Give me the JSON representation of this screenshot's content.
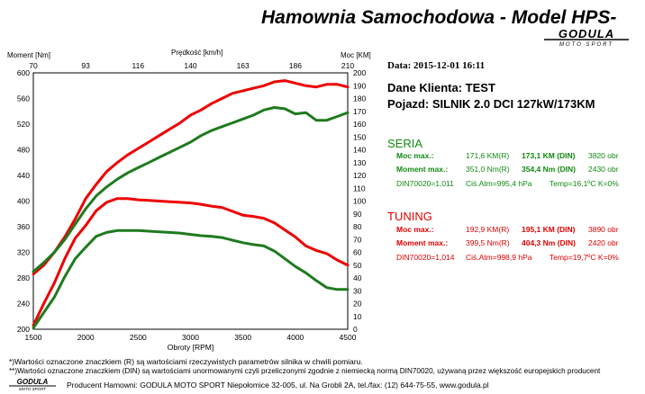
{
  "title": "Hamownia Samochodowa  -  Model HPS-",
  "logo": {
    "text": "GODULA",
    "subtext": "MOTO SPORT"
  },
  "header": {
    "moment_label": "Moment [Nm]",
    "speed_label": "Prędkość [km/h]",
    "power_label": "Moc [KM]",
    "speed_ticks": [
      "70",
      "93",
      "116",
      "140",
      "163",
      "186",
      "210"
    ]
  },
  "info": {
    "date": "Data: 2015-12-01  16:11",
    "client": "Dane Klienta: TEST",
    "vehicle": "Pojazd:  SILNIK  2.0 DCI 127kW/173KM"
  },
  "seria": {
    "heading": "SERIA",
    "power_label": "Moc max.:",
    "power_r": "171,6 KM(R)",
    "power_din": "173,1 KM (DIN)",
    "power_rpm": "3820 obr",
    "torque_label": "Moment max.:",
    "torque_r": "351,0 Nm(R)",
    "torque_din": "354,4 Nm (DIN)",
    "torque_rpm": "2430 obr",
    "din_code": "DIN70020=1,011",
    "pressure": "Ciś.Atm=995,4 hPa",
    "temp": "Temp=16,1ºC  K=0%"
  },
  "tuning": {
    "heading": "TUNING",
    "power_label": "Moc max.:",
    "power_r": "192,9 KM(R)",
    "power_din": "195,1 KM (DIN)",
    "power_rpm": "3890 obr",
    "torque_label": "Moment max.:",
    "torque_r": "399,5 Nm(R)",
    "torque_din": "404,3 Nm (DIN)",
    "torque_rpm": "2420 obr",
    "din_code": "DIN70020=1,014",
    "pressure": "Ciś.Atm=998,9 hPa",
    "temp": "Temp=19,7ºC  K=0%"
  },
  "footer": {
    "note1": "*)Wartości oznaczone znaczkiem (R) są wartościami rzeczywistych parametrów silnika w chwili pomiaru.",
    "note2": "**)Wartości oznaczone znaczkiem (DIN) są wartościami unormowanymi czyli przeliczonymi zgodnie z niemiecką normą DIN70020, używaną przez większość europejskich producent",
    "producer": "Producent Hamowni: GODULA MOTO SPORT Niepołomice 32-005, ul. Na Grobli 2A, tel./fax: (12) 644-75-55, www.godula.pl"
  },
  "chart_data": {
    "type": "line",
    "xlabel": "Obroty [RPM]",
    "xlim": [
      1500,
      4500
    ],
    "x_ticks": [
      1500,
      2000,
      2500,
      3000,
      3500,
      4000,
      4500
    ],
    "y_left_label": "Moment [Nm]",
    "y_left_lim": [
      200,
      600
    ],
    "y_left_ticks": [
      200,
      240,
      280,
      320,
      360,
      400,
      440,
      480,
      520,
      560,
      600
    ],
    "y_right_label": "Moc [KM]",
    "y_right_lim": [
      0,
      200
    ],
    "y_right_ticks": [
      0,
      10,
      20,
      30,
      40,
      50,
      60,
      70,
      80,
      90,
      100,
      110,
      120,
      130,
      140,
      150,
      160,
      170,
      180,
      190,
      200
    ],
    "grid": true,
    "series": [
      {
        "name": "TUNING",
        "measure": "torque",
        "axis": "left",
        "color": "#ee0000",
        "x": [
          1500,
          1600,
          1700,
          1800,
          1900,
          2000,
          2100,
          2200,
          2300,
          2400,
          2500,
          2600,
          2700,
          2800,
          2900,
          3000,
          3100,
          3200,
          3300,
          3400,
          3500,
          3600,
          3700,
          3800,
          3900,
          4000,
          4100,
          4200,
          4300,
          4400,
          4500
        ],
        "values": [
          206,
          240,
          272,
          310,
          342,
          362,
          385,
          398,
          404,
          404,
          402,
          401,
          400,
          399,
          398,
          397,
          395,
          392,
          390,
          384,
          378,
          376,
          373,
          366,
          355,
          344,
          330,
          323,
          318,
          308,
          300
        ]
      },
      {
        "name": "SERIA",
        "measure": "torque",
        "axis": "left",
        "color": "#1f7a1f",
        "x": [
          1500,
          1600,
          1700,
          1800,
          1900,
          2000,
          2100,
          2200,
          2300,
          2400,
          2500,
          2600,
          2700,
          2800,
          2900,
          3000,
          3100,
          3200,
          3300,
          3400,
          3500,
          3600,
          3700,
          3800,
          3900,
          4000,
          4100,
          4200,
          4300,
          4400,
          4500
        ],
        "values": [
          202,
          226,
          250,
          282,
          310,
          328,
          345,
          351,
          354,
          354,
          354,
          353,
          352,
          351,
          350,
          348,
          346,
          345,
          343,
          339,
          335,
          332,
          330,
          322,
          310,
          298,
          288,
          276,
          265,
          262,
          262
        ]
      },
      {
        "name": "TUNING",
        "measure": "power",
        "axis": "right",
        "color": "#ee0000",
        "x": [
          1500,
          1600,
          1700,
          1800,
          1900,
          2000,
          2100,
          2200,
          2300,
          2400,
          2500,
          2600,
          2700,
          2800,
          2900,
          3000,
          3100,
          3200,
          3300,
          3400,
          3500,
          3600,
          3700,
          3800,
          3900,
          4000,
          4100,
          4200,
          4300,
          4400,
          4500
        ],
        "values": [
          43,
          50,
          60,
          72,
          86,
          102,
          113,
          123,
          130,
          136,
          141,
          146,
          151,
          156,
          161,
          167,
          171,
          176,
          180,
          184,
          186,
          188,
          190,
          193,
          194,
          192,
          190,
          189,
          191,
          191,
          189
        ]
      },
      {
        "name": "SERIA",
        "measure": "power",
        "axis": "right",
        "color": "#1f7a1f",
        "x": [
          1500,
          1600,
          1700,
          1800,
          1900,
          2000,
          2100,
          2200,
          2300,
          2400,
          2500,
          2600,
          2700,
          2800,
          2900,
          3000,
          3100,
          3200,
          3300,
          3400,
          3500,
          3600,
          3700,
          3800,
          3900,
          4000,
          4100,
          4200,
          4300,
          4400,
          4500
        ],
        "values": [
          45,
          52,
          60,
          70,
          82,
          94,
          104,
          111,
          117,
          122,
          126,
          130,
          134,
          138,
          142,
          146,
          151,
          155,
          158,
          161,
          164,
          167,
          171,
          173,
          172,
          168,
          169,
          163,
          163,
          166,
          169
        ]
      }
    ]
  }
}
